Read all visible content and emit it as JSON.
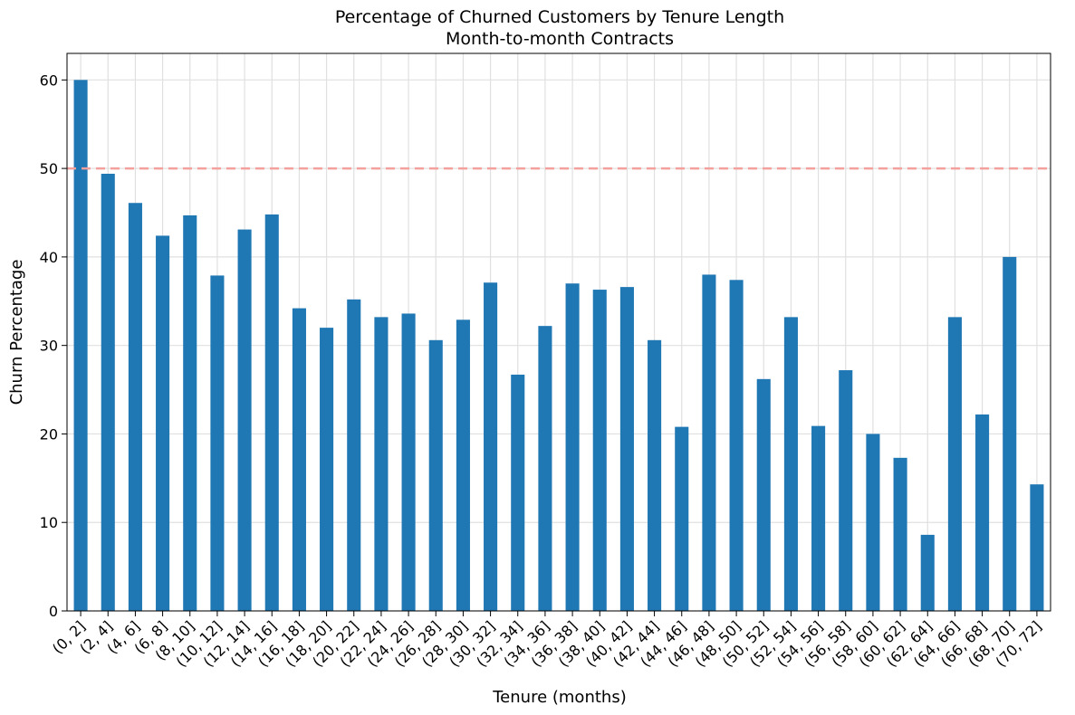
{
  "chart_data": {
    "type": "bar",
    "title": "Percentage of Churned Customers by Tenure Length",
    "subtitle": "Month-to-month Contracts",
    "xlabel": "Tenure (months)",
    "ylabel": "Churn Percentage",
    "categories": [
      "(0, 2]",
      "(2, 4]",
      "(4, 6]",
      "(6, 8]",
      "(8, 10]",
      "(10, 12]",
      "(12, 14]",
      "(14, 16]",
      "(16, 18]",
      "(18, 20]",
      "(20, 22]",
      "(22, 24]",
      "(24, 26]",
      "(26, 28]",
      "(28, 30]",
      "(30, 32]",
      "(32, 34]",
      "(34, 36]",
      "(36, 38]",
      "(38, 40]",
      "(40, 42]",
      "(42, 44]",
      "(44, 46]",
      "(46, 48]",
      "(48, 50]",
      "(50, 52]",
      "(52, 54]",
      "(54, 56]",
      "(56, 58]",
      "(58, 60]",
      "(60, 62]",
      "(62, 64]",
      "(64, 66]",
      "(66, 68]",
      "(68, 70]",
      "(70, 72]"
    ],
    "values": [
      60.0,
      49.4,
      46.1,
      42.4,
      44.7,
      37.9,
      43.1,
      44.8,
      34.2,
      32.0,
      35.2,
      33.2,
      33.6,
      30.6,
      32.9,
      37.1,
      26.7,
      32.2,
      37.0,
      36.3,
      36.6,
      30.6,
      20.8,
      38.0,
      37.4,
      26.2,
      33.2,
      20.9,
      27.2,
      20.0,
      17.3,
      8.6,
      33.2,
      22.2,
      40.0,
      14.3
    ],
    "ylim": [
      0,
      63
    ],
    "yticks": [
      0,
      10,
      20,
      30,
      40,
      50,
      60
    ],
    "reference_line": 50,
    "grid": true,
    "bar_color": "#1f77b4",
    "reference_line_color": "#f4a09c",
    "grid_color": "#e0e0e0"
  }
}
